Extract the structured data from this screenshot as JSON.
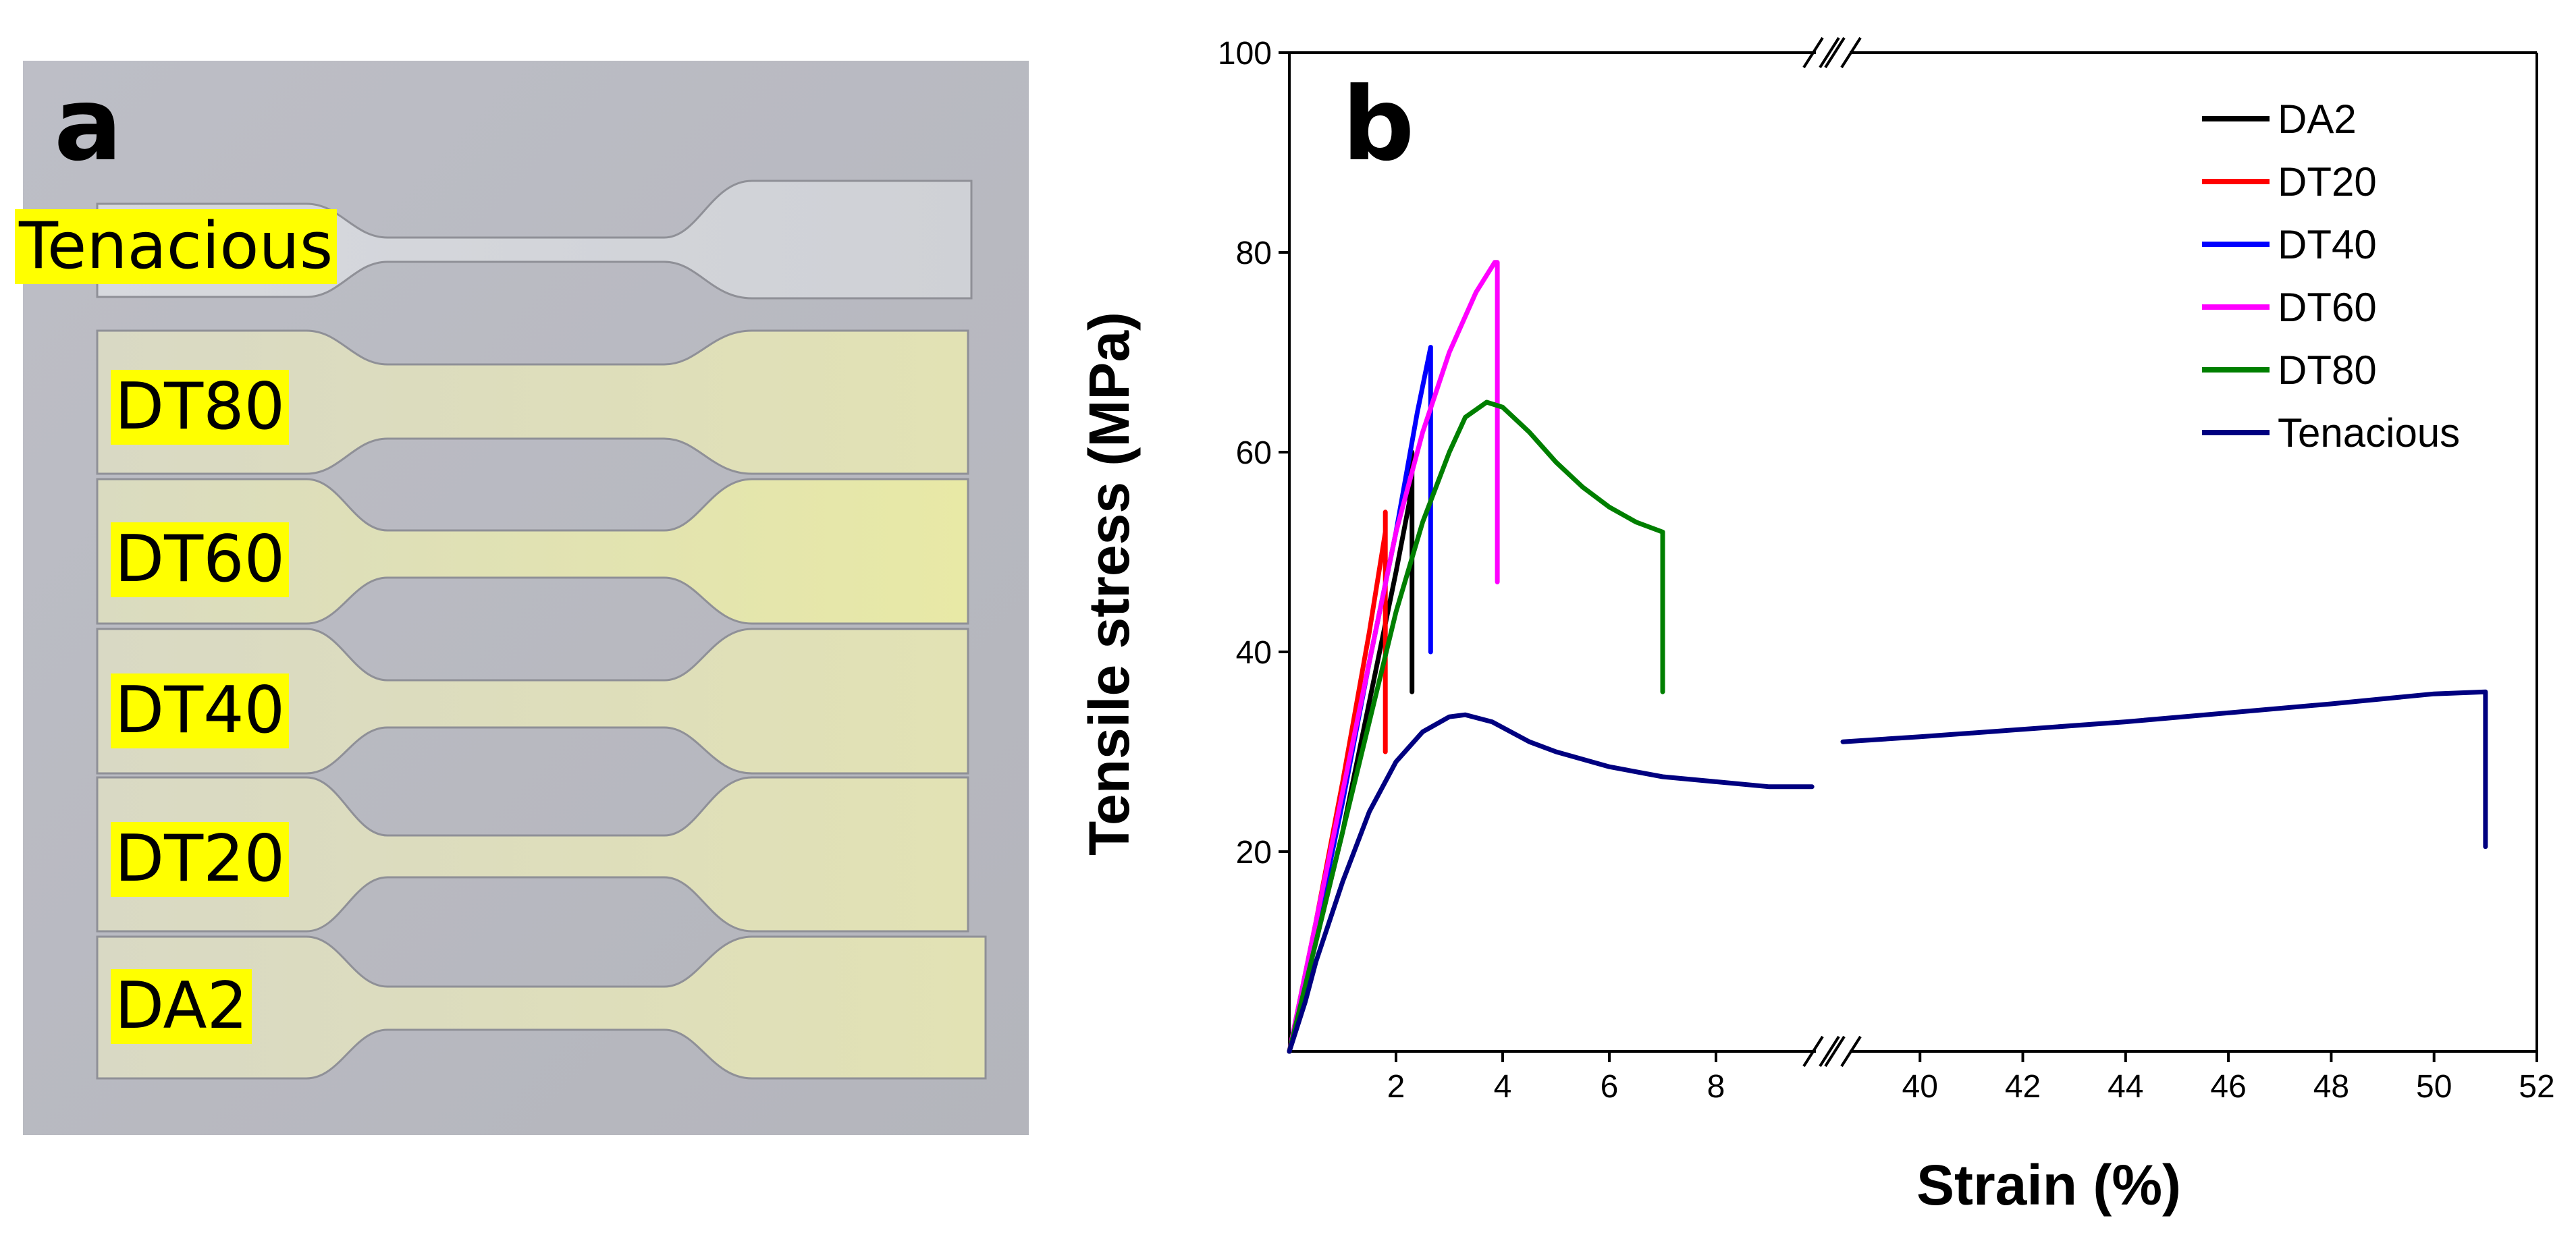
{
  "panel_a": {
    "label": "a",
    "specimens": [
      "Tenacious",
      "DT80",
      "DT60",
      "DT40",
      "DT20",
      "DA2"
    ]
  },
  "chart_data": {
    "type": "line",
    "panel_label": "b",
    "xlabel": "Strain (%)",
    "ylabel": "Tensile stress (MPa)",
    "ylim": [
      0,
      100
    ],
    "x_axis": {
      "broken": true,
      "segments": [
        {
          "range": [
            0,
            10
          ],
          "ticks": [
            2,
            4,
            6,
            8
          ]
        },
        {
          "range": [
            38.5,
            52
          ],
          "ticks": [
            40,
            42,
            44,
            46,
            48,
            50,
            52
          ]
        }
      ]
    },
    "y_ticks": [
      20,
      40,
      60,
      80,
      100
    ],
    "grid": false,
    "legend_position": "top-right",
    "series": [
      {
        "name": "DA2",
        "color": "#000000",
        "points": [
          [
            0,
            0
          ],
          [
            0.5,
            11
          ],
          [
            1.0,
            22
          ],
          [
            1.5,
            35
          ],
          [
            2.0,
            48
          ],
          [
            2.25,
            55
          ],
          [
            2.3,
            60
          ],
          [
            2.3,
            36
          ]
        ]
      },
      {
        "name": "DT20",
        "color": "#ff0000",
        "points": [
          [
            0,
            0
          ],
          [
            0.5,
            13
          ],
          [
            1.0,
            27
          ],
          [
            1.5,
            42
          ],
          [
            1.8,
            52
          ],
          [
            1.8,
            54
          ],
          [
            1.8,
            30
          ]
        ]
      },
      {
        "name": "DT40",
        "color": "#0000ff",
        "points": [
          [
            0,
            0
          ],
          [
            0.5,
            12
          ],
          [
            1.0,
            25
          ],
          [
            1.5,
            39
          ],
          [
            2.0,
            52
          ],
          [
            2.4,
            64
          ],
          [
            2.65,
            70.5
          ],
          [
            2.65,
            58
          ],
          [
            2.65,
            40
          ]
        ]
      },
      {
        "name": "DT60",
        "color": "#ff00ff",
        "points": [
          [
            0,
            0
          ],
          [
            0.5,
            13
          ],
          [
            1.0,
            26
          ],
          [
            1.5,
            39
          ],
          [
            2.0,
            52
          ],
          [
            2.5,
            62
          ],
          [
            3.0,
            70
          ],
          [
            3.5,
            76
          ],
          [
            3.85,
            79
          ],
          [
            3.9,
            79
          ],
          [
            3.9,
            47
          ]
        ]
      },
      {
        "name": "DT80",
        "color": "#007f00",
        "points": [
          [
            0,
            0
          ],
          [
            0.5,
            11
          ],
          [
            1.0,
            22
          ],
          [
            1.5,
            33
          ],
          [
            2.0,
            44
          ],
          [
            2.5,
            53
          ],
          [
            3.0,
            60
          ],
          [
            3.3,
            63.5
          ],
          [
            3.7,
            65
          ],
          [
            4.0,
            64.5
          ],
          [
            4.5,
            62
          ],
          [
            5.0,
            59
          ],
          [
            5.5,
            56.5
          ],
          [
            6.0,
            54.5
          ],
          [
            6.5,
            53
          ],
          [
            7.0,
            52
          ],
          [
            7.0,
            36
          ]
        ]
      },
      {
        "name": "Tenacious",
        "color": "#000080",
        "points": [
          [
            0,
            0
          ],
          [
            0.3,
            5
          ],
          [
            0.5,
            9
          ],
          [
            1.0,
            17
          ],
          [
            1.5,
            24
          ],
          [
            2.0,
            29
          ],
          [
            2.5,
            32
          ],
          [
            3.0,
            33.5
          ],
          [
            3.3,
            33.7
          ],
          [
            3.8,
            33
          ],
          [
            4.5,
            31
          ],
          [
            5.0,
            30
          ],
          [
            6.0,
            28.5
          ],
          [
            7.0,
            27.5
          ],
          [
            8.0,
            27
          ],
          [
            9.0,
            26.5
          ],
          [
            9.8,
            26.5
          ],
          [
            38.5,
            31
          ],
          [
            40,
            31.5
          ],
          [
            44,
            33
          ],
          [
            48,
            34.8
          ],
          [
            50,
            35.8
          ],
          [
            51,
            36
          ],
          [
            51,
            20.5
          ]
        ]
      }
    ]
  }
}
